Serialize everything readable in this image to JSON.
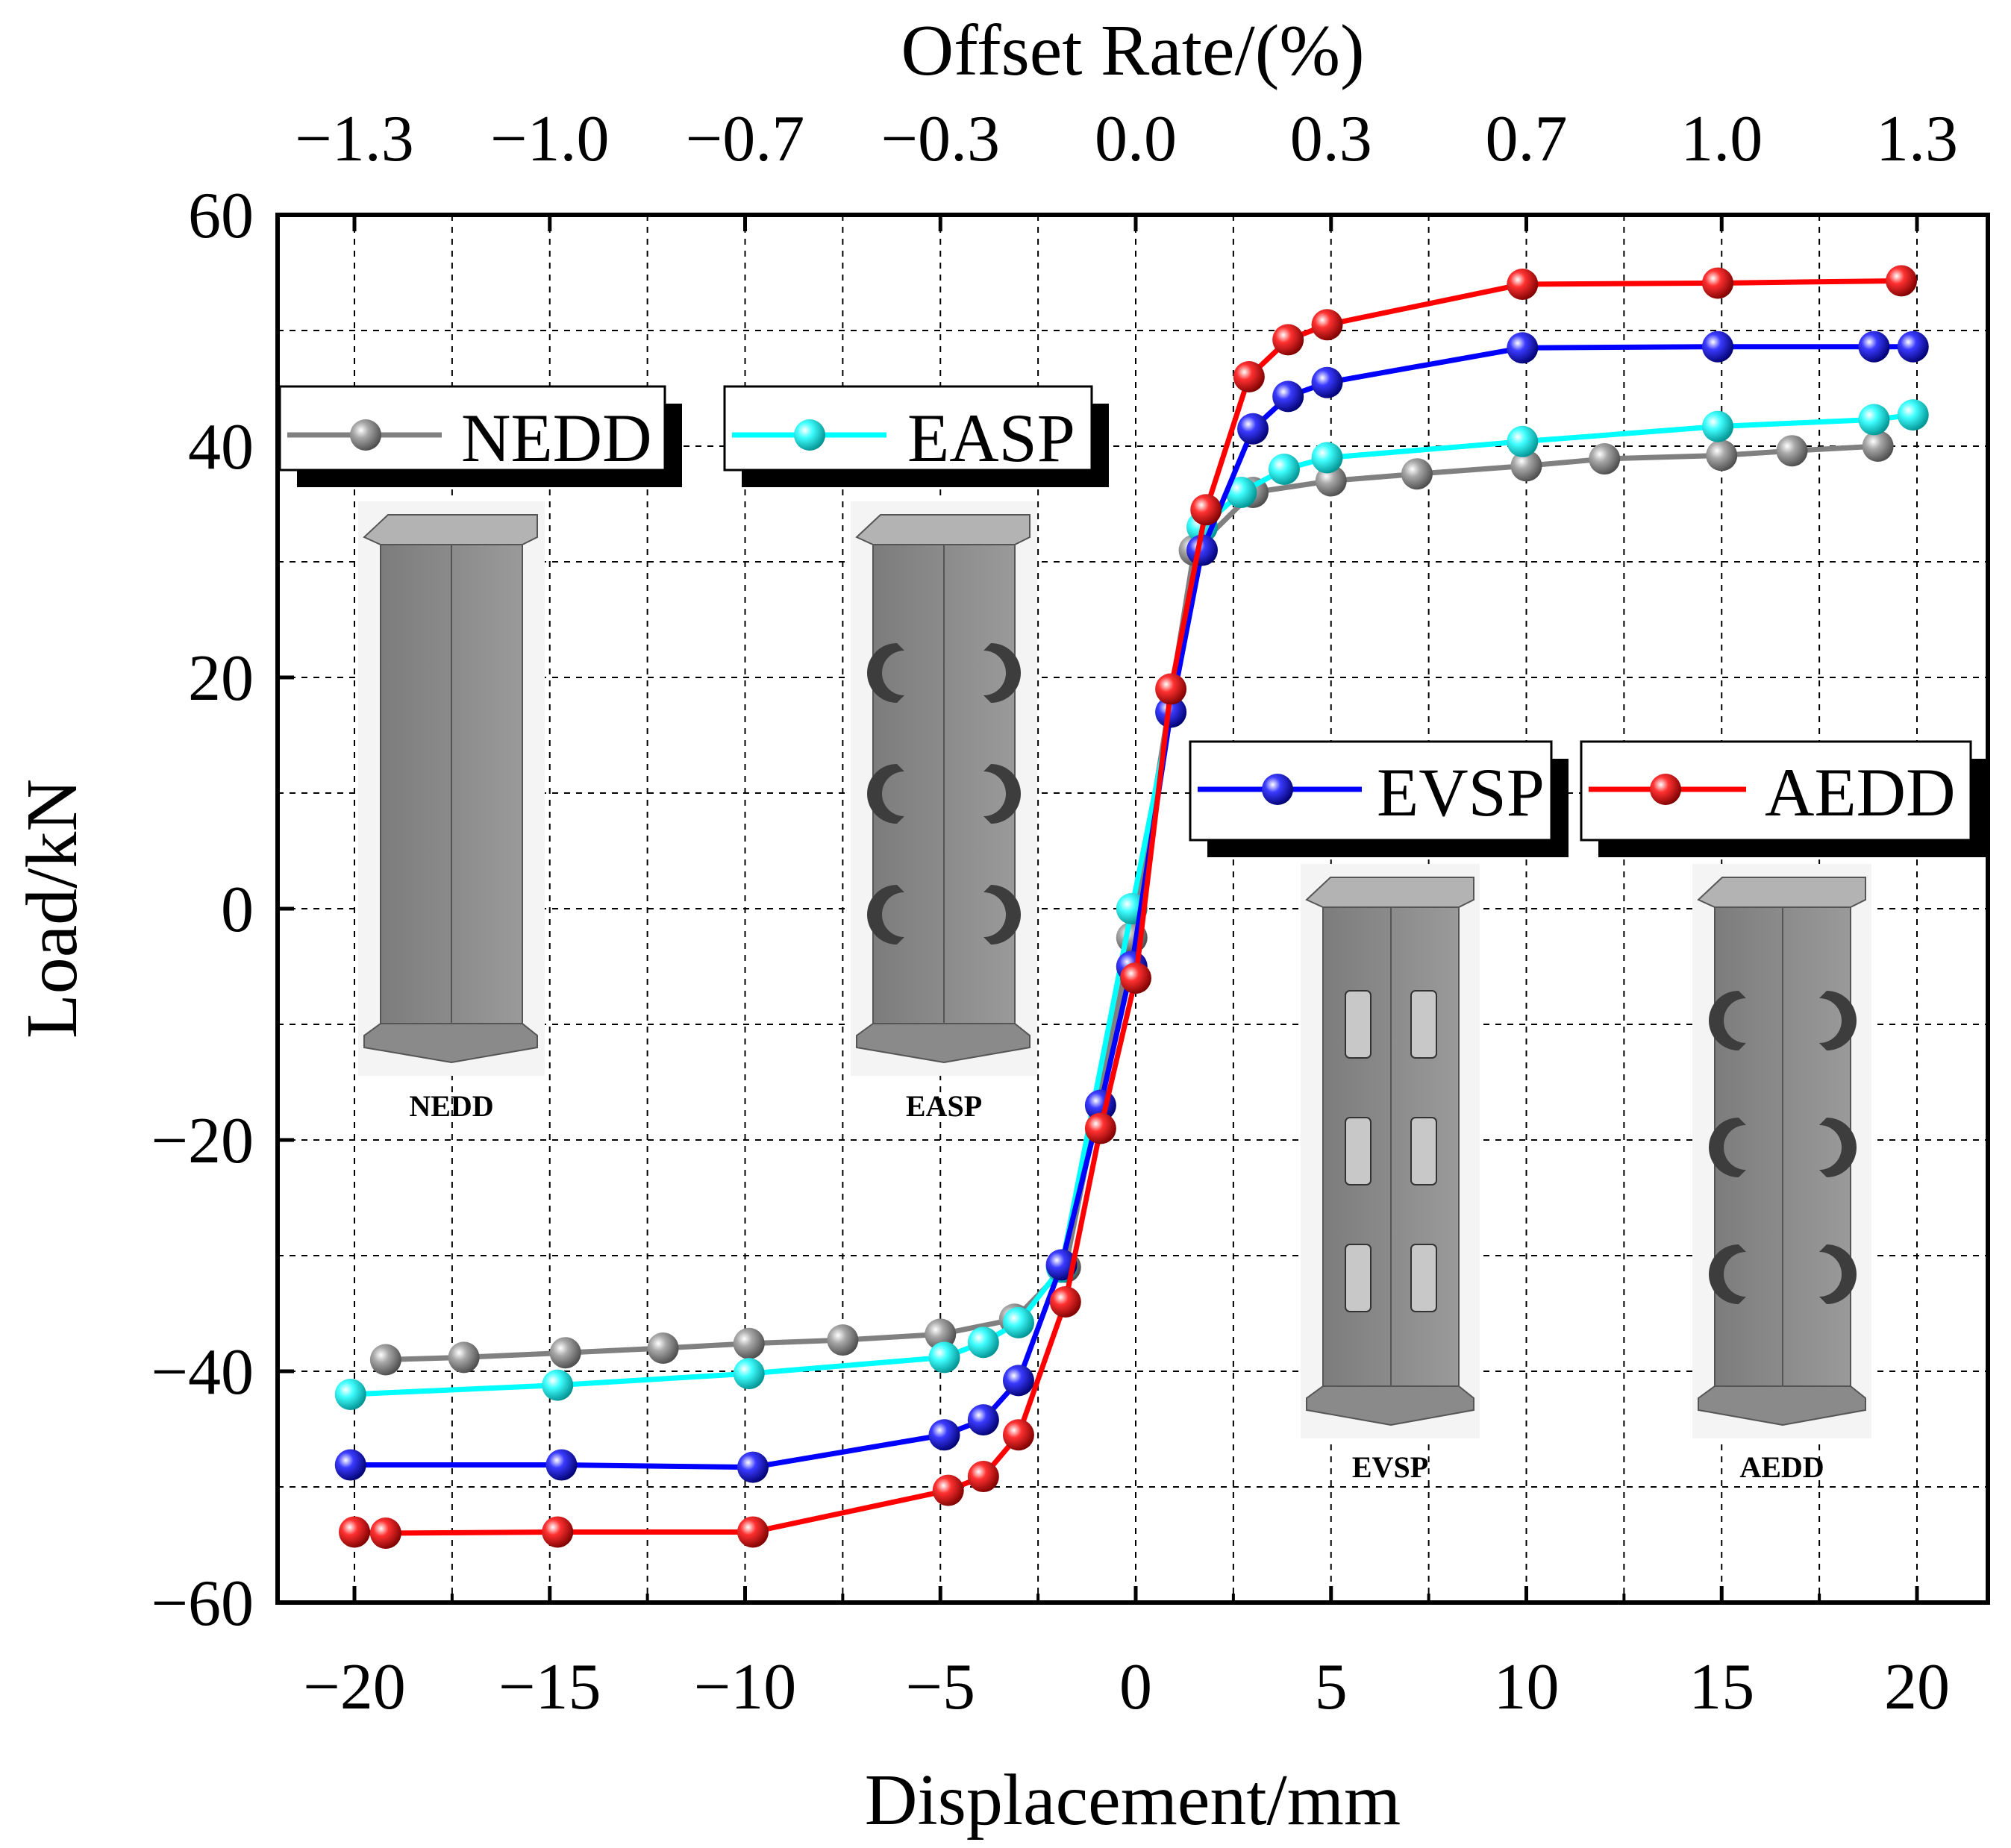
{
  "chart_data": {
    "type": "line",
    "xlabel": "Displacement/mm",
    "ylabel": "Load/kN",
    "top_xlabel": "Offset Rate/(%)",
    "xlim": [
      -22,
      22
    ],
    "ylim": [
      -60,
      60
    ],
    "grid": true,
    "x_ticks": [
      "−20",
      "−15",
      "−10",
      "−5",
      "0",
      "5",
      "10",
      "15",
      "20"
    ],
    "x_tick_values": [
      -20,
      -15,
      -10,
      -5,
      0,
      5,
      10,
      15,
      20
    ],
    "y_ticks": [
      "−60",
      "−40",
      "−20",
      "0",
      "20",
      "40",
      "60"
    ],
    "y_tick_values": [
      -60,
      -40,
      -20,
      0,
      20,
      40,
      60
    ],
    "top_ticks": [
      {
        "label": "−1.3",
        "x": -20
      },
      {
        "label": "−1.0",
        "x": -15
      },
      {
        "label": "−0.7",
        "x": -10
      },
      {
        "label": "−0.3",
        "x": -5
      },
      {
        "label": "0.0",
        "x": 0
      },
      {
        "label": "0.3",
        "x": 5
      },
      {
        "label": "0.7",
        "x": 10
      },
      {
        "label": "1.0",
        "x": 15
      },
      {
        "label": "1.3",
        "x": 20
      }
    ],
    "series": [
      {
        "name": "NEDD",
        "color": "#808080",
        "points": [
          [
            -19.2,
            -39
          ],
          [
            -17.2,
            -38.8
          ],
          [
            -14.6,
            -38.4
          ],
          [
            -12.1,
            -38
          ],
          [
            -9.9,
            -37.6
          ],
          [
            -7.5,
            -37.3
          ],
          [
            -5,
            -36.8
          ],
          [
            -3.1,
            -35.5
          ],
          [
            -1.8,
            -31
          ],
          [
            -0.1,
            -2.5
          ],
          [
            1.5,
            31
          ],
          [
            3,
            36
          ],
          [
            5,
            37
          ],
          [
            7.2,
            37.6
          ],
          [
            10,
            38.3
          ],
          [
            12,
            38.9
          ],
          [
            15,
            39.2
          ],
          [
            16.8,
            39.6
          ],
          [
            19,
            40
          ]
        ]
      },
      {
        "name": "EASP",
        "color": "#00ffff",
        "points": [
          [
            -20.1,
            -42
          ],
          [
            -14.8,
            -41.2
          ],
          [
            -9.9,
            -40.2
          ],
          [
            -4.9,
            -38.8
          ],
          [
            -3.9,
            -37.5
          ],
          [
            -3,
            -35.8
          ],
          [
            -1.9,
            -31
          ],
          [
            -0.1,
            0
          ],
          [
            0.9,
            17
          ],
          [
            1.7,
            33
          ],
          [
            2.7,
            36
          ],
          [
            3.8,
            38
          ],
          [
            4.9,
            39
          ],
          [
            9.9,
            40.4
          ],
          [
            14.9,
            41.7
          ],
          [
            18.9,
            42.3
          ],
          [
            19.9,
            42.7
          ]
        ]
      },
      {
        "name": "EVSP",
        "color": "#0000ff",
        "points": [
          [
            -20.1,
            -48.1
          ],
          [
            -14.7,
            -48.1
          ],
          [
            -9.8,
            -48.3
          ],
          [
            -4.9,
            -45.5
          ],
          [
            -3.9,
            -44.2
          ],
          [
            -3,
            -40.8
          ],
          [
            -1.9,
            -30.8
          ],
          [
            -0.9,
            -17
          ],
          [
            -0.1,
            -5
          ],
          [
            0.9,
            17
          ],
          [
            1.7,
            31
          ],
          [
            3,
            41.5
          ],
          [
            3.9,
            44.3
          ],
          [
            4.9,
            45.5
          ],
          [
            9.9,
            48.5
          ],
          [
            14.9,
            48.6
          ],
          [
            18.9,
            48.6
          ],
          [
            19.9,
            48.6
          ]
        ]
      },
      {
        "name": "AEDD",
        "color": "#ff0000",
        "points": [
          [
            -20,
            -53.9
          ],
          [
            -19.2,
            -54
          ],
          [
            -14.8,
            -53.9
          ],
          [
            -9.8,
            -53.9
          ],
          [
            -4.8,
            -50.3
          ],
          [
            -3.9,
            -49.1
          ],
          [
            -3,
            -45.5
          ],
          [
            -1.8,
            -34
          ],
          [
            -0.9,
            -19
          ],
          [
            0,
            -6
          ],
          [
            0.9,
            19
          ],
          [
            1.8,
            34.5
          ],
          [
            2.9,
            46
          ],
          [
            3.9,
            49.2
          ],
          [
            4.9,
            50.5
          ],
          [
            9.9,
            54
          ],
          [
            14.9,
            54.1
          ],
          [
            19.6,
            54.3
          ]
        ]
      }
    ],
    "insets": [
      "NEDD",
      "EASP",
      "EVSP",
      "AEDD"
    ]
  }
}
